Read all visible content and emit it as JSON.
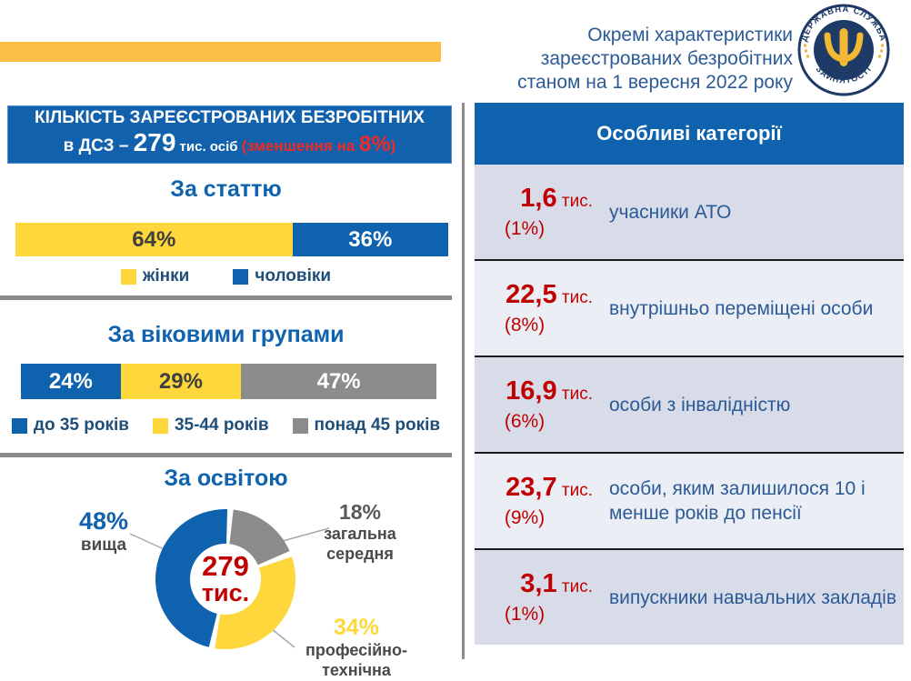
{
  "header": {
    "title_lines": [
      "Окремі характеристики",
      "зареєстрованих безробітних",
      "станом на 1 вересня 2022 року"
    ],
    "logo": {
      "arc_top": "ДЕРЖАВНА СЛУЖБА",
      "arc_bottom": "ЗАЙНЯТОСТІ"
    }
  },
  "summary": {
    "line1": "КІЛЬКІСТЬ ЗАРЕЄСТРОВАНИХ БЕЗРОБІТНИХ",
    "line2_prefix": "в ДСЗ – ",
    "number": "279",
    "units": " тис. осіб ",
    "note_prefix": " (зменшення на ",
    "note_value": "8%",
    "note_suffix": ")"
  },
  "chart_data": [
    {
      "id": "gender",
      "type": "bar",
      "subtype": "stacked-horizontal",
      "title": "За статтю",
      "unit": "%",
      "xlim": [
        0,
        100
      ],
      "series": [
        {
          "name": "жінки",
          "value": 64,
          "label": "64%",
          "color": "#FDD73B",
          "label_color": "#3F3F3F"
        },
        {
          "name": "чоловіки",
          "value": 36,
          "label": "36%",
          "color": "#0F62AE",
          "label_color": "#FFFFFF"
        }
      ]
    },
    {
      "id": "age",
      "type": "bar",
      "subtype": "stacked-horizontal",
      "title": "За віковими групами",
      "unit": "%",
      "xlim": [
        0,
        100
      ],
      "series": [
        {
          "name": "до 35 років",
          "value": 24,
          "label": "24%",
          "color": "#0F62AE",
          "label_color": "#FFFFFF"
        },
        {
          "name": "35-44 років",
          "value": 29,
          "label": "29%",
          "color": "#FDD73B",
          "label_color": "#3F3F3F"
        },
        {
          "name": "понад 45 років",
          "value": 47,
          "label": "47%",
          "color": "#8C8C8C",
          "label_color": "#FFFFFF"
        }
      ]
    },
    {
      "id": "education",
      "type": "pie",
      "subtype": "donut",
      "title": "За освітою",
      "center": {
        "value": "279",
        "units": "тис."
      },
      "slices": [
        {
          "name": "вища",
          "value": 48,
          "label": "48%",
          "color": "#0F62AE",
          "label_color": "#0F62AE",
          "lines": [
            "вища"
          ]
        },
        {
          "name": "загальна середня",
          "value": 18,
          "label": "18%",
          "color": "#8C8C8C",
          "label_color": "#595959",
          "lines": [
            "загальна",
            "середня"
          ]
        },
        {
          "name": "професійно-технічна",
          "value": 34,
          "label": "34%",
          "color": "#FDD73B",
          "label_color": "#FFD83C",
          "lines": [
            "професійно-",
            "технічна"
          ]
        }
      ]
    }
  ],
  "special_categories": {
    "header": "Особливі категорії",
    "rows": [
      {
        "value": "1,6",
        "units": "тис.",
        "share": "(1%)",
        "label": "учасники АТО"
      },
      {
        "value": "22,5",
        "units": "тис.",
        "share": "(8%)",
        "label": "внутрішньо переміщені особи"
      },
      {
        "value": "16,9",
        "units": "тис.",
        "share": "(6%)",
        "label": "особи з інвалідністю"
      },
      {
        "value": "23,7",
        "units": "тис.",
        "share": "(9%)",
        "label": "особи, яким залишилося 10 і менше років до пенсії"
      },
      {
        "value": "3,1",
        "units": "тис.",
        "share": "(1%)",
        "label": "випускники навчальних закладів"
      }
    ]
  },
  "colors": {
    "blue": "#0F62AE",
    "yellow": "#FDD73B",
    "amber_bar": "#FBBF45",
    "gray": "#8C8C8C",
    "dark_red": "#C00000",
    "bright_red_note": "#F02B23",
    "navy_text": "#2B5A96",
    "legend_text": "#1F4E79",
    "row_dark": "#D8DCE9",
    "row_light": "#ECEEF5",
    "logo_navy": "#1E3A66",
    "logo_yellow": "#F2B935"
  }
}
